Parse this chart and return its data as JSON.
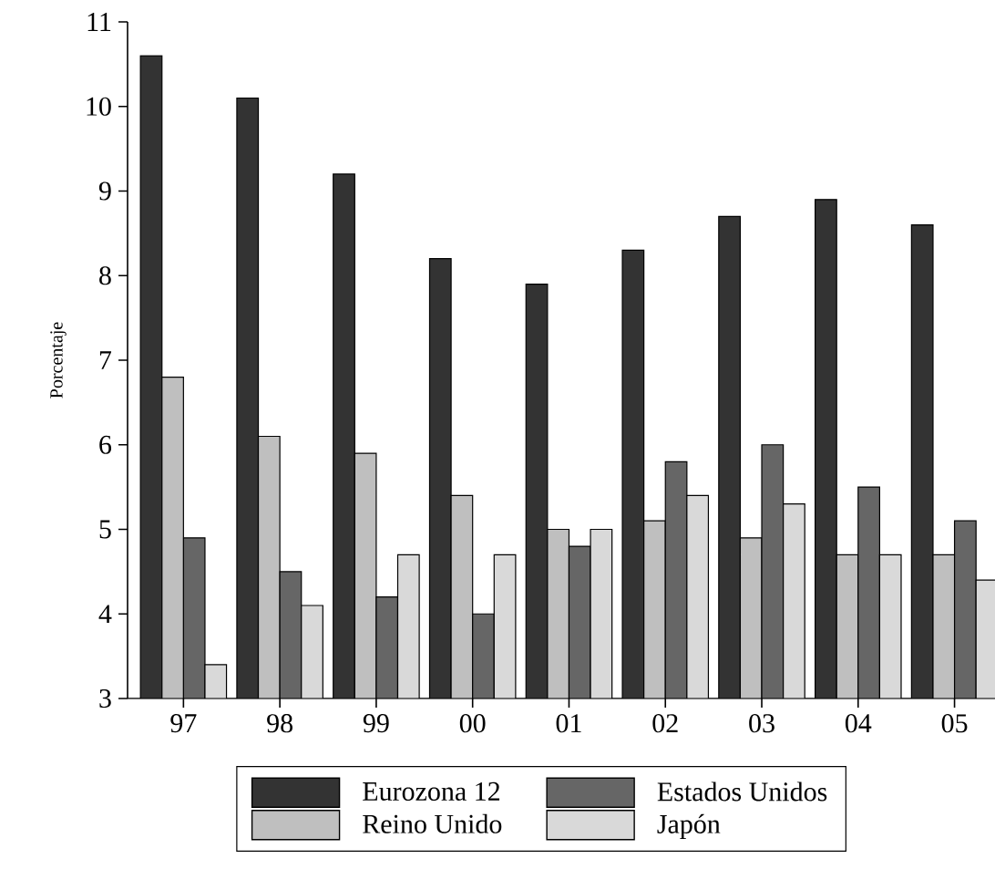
{
  "chart_data": {
    "type": "bar",
    "ylabel": "Porcentaje",
    "categories": [
      "97",
      "98",
      "99",
      "00",
      "01",
      "02",
      "03",
      "04",
      "05"
    ],
    "series": [
      {
        "name": "Eurozona 12",
        "color": "#333333",
        "values": [
          10.6,
          10.1,
          9.2,
          8.2,
          7.9,
          8.3,
          8.7,
          8.9,
          8.6
        ]
      },
      {
        "name": "Reino Unido",
        "color": "#bfbfbf",
        "values": [
          6.8,
          6.1,
          5.9,
          5.4,
          5.0,
          5.1,
          4.9,
          4.7,
          4.7
        ]
      },
      {
        "name": "Estados Unidos",
        "color": "#666666",
        "values": [
          4.9,
          4.5,
          4.2,
          4.0,
          4.8,
          5.8,
          6.0,
          5.5,
          5.1
        ]
      },
      {
        "name": "Japón",
        "color": "#d9d9d9",
        "values": [
          3.4,
          4.1,
          4.7,
          4.7,
          5.0,
          5.4,
          5.3,
          4.7,
          4.4
        ]
      }
    ],
    "ylim": [
      3,
      11
    ],
    "yticks": [
      3,
      4,
      5,
      6,
      7,
      8,
      9,
      10,
      11
    ],
    "legend": "bottom"
  }
}
